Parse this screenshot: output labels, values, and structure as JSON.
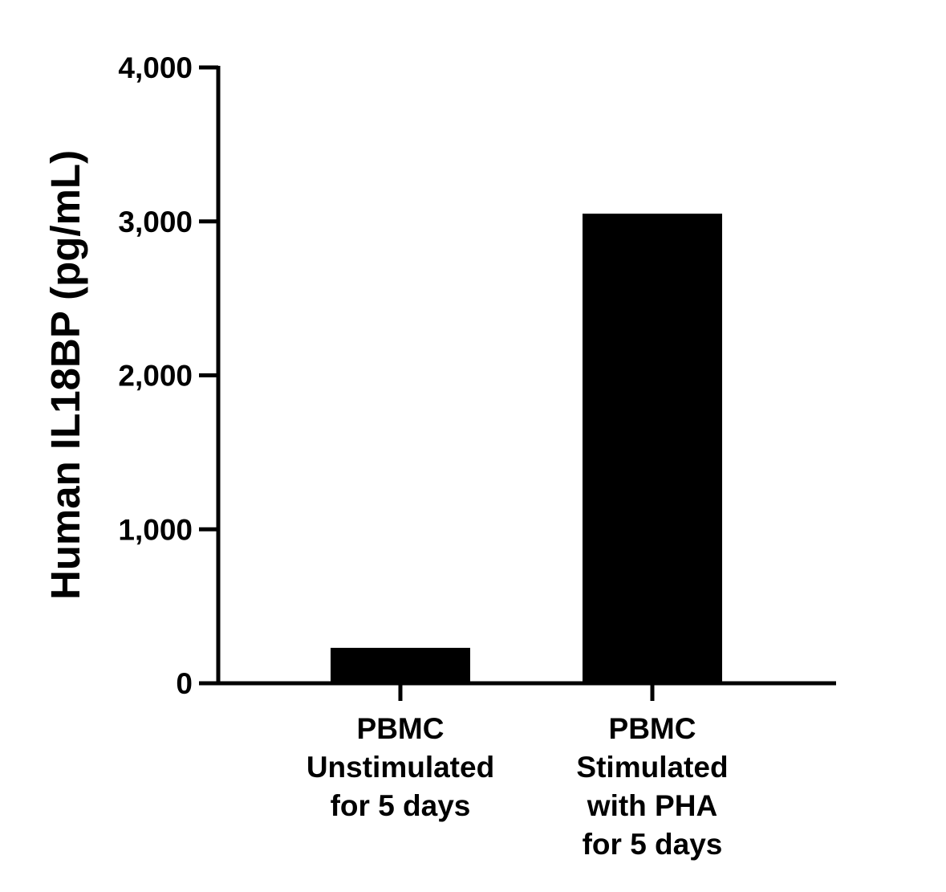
{
  "chart_data": {
    "type": "bar",
    "title": "",
    "xlabel": "",
    "ylabel": "Human IL18BP (pg/mL)",
    "ylim": [
      0,
      4000
    ],
    "yticks": [
      0,
      1000,
      2000,
      3000,
      4000
    ],
    "ytick_labels": [
      "0",
      "1,000",
      "2,000",
      "3,000",
      "4,000"
    ],
    "categories": [
      [
        "PBMC",
        "Unstimulated",
        "for 5 days"
      ],
      [
        "PBMC",
        "Stimulated",
        "with PHA",
        "for 5 days"
      ]
    ],
    "values": [
      230,
      3050
    ],
    "grid": false,
    "legend": "none",
    "colors": {
      "bar": "#000000",
      "axis": "#000000",
      "background": "#ffffff"
    }
  }
}
